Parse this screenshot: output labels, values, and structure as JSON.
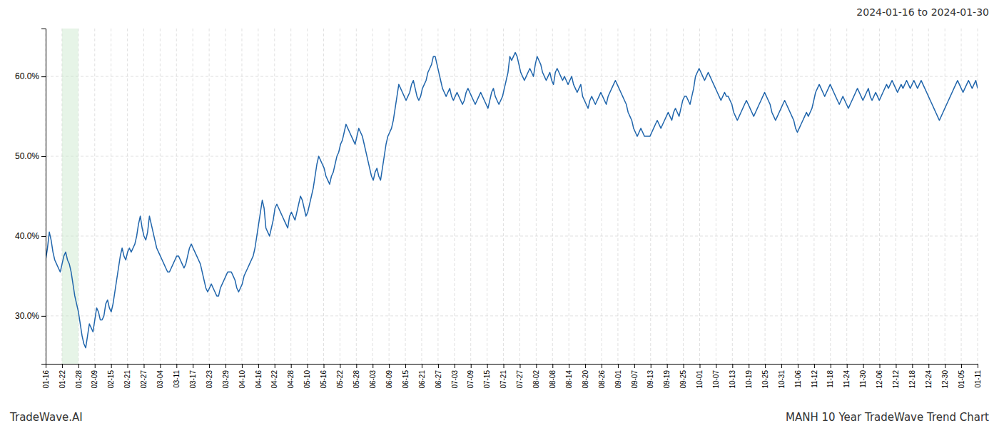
{
  "chart_data": {
    "type": "line",
    "title": "2024-01-16 to 2024-01-30",
    "annotations": [
      "TradeWave.AI",
      "MANH 10 Year TradeWave Trend Chart"
    ],
    "color": "#2166ac",
    "grid": true,
    "highlight": {
      "range": [
        1,
        2
      ],
      "color": "#c8e6c9"
    },
    "ylim": [
      24.0,
      66.0
    ],
    "yticks": [
      {
        "value": 30.0,
        "label": "30.0%"
      },
      {
        "value": 40.0,
        "label": "40.0%"
      },
      {
        "value": 50.0,
        "label": "50.0%"
      },
      {
        "value": 60.0,
        "label": "60.0%"
      }
    ],
    "xlim": [
      0,
      57
    ],
    "xticks": [
      {
        "value": 0,
        "label": "01-16"
      },
      {
        "value": 1,
        "label": "01-22"
      },
      {
        "value": 2,
        "label": "01-28"
      },
      {
        "value": 3,
        "label": "02-09"
      },
      {
        "value": 4,
        "label": "02-15"
      },
      {
        "value": 5,
        "label": "02-21"
      },
      {
        "value": 6,
        "label": "02-27"
      },
      {
        "value": 7,
        "label": "03-04"
      },
      {
        "value": 8,
        "label": "03-11"
      },
      {
        "value": 9,
        "label": "03-17"
      },
      {
        "value": 10,
        "label": "03-23"
      },
      {
        "value": 11,
        "label": "03-29"
      },
      {
        "value": 12,
        "label": "04-10"
      },
      {
        "value": 13,
        "label": "04-16"
      },
      {
        "value": 14,
        "label": "04-22"
      },
      {
        "value": 15,
        "label": "04-28"
      },
      {
        "value": 16,
        "label": "05-10"
      },
      {
        "value": 17,
        "label": "05-16"
      },
      {
        "value": 18,
        "label": "05-22"
      },
      {
        "value": 19,
        "label": "05-28"
      },
      {
        "value": 20,
        "label": "06-03"
      },
      {
        "value": 21,
        "label": "06-09"
      },
      {
        "value": 22,
        "label": "06-15"
      },
      {
        "value": 23,
        "label": "06-21"
      },
      {
        "value": 24,
        "label": "06-27"
      },
      {
        "value": 25,
        "label": "07-03"
      },
      {
        "value": 26,
        "label": "07-09"
      },
      {
        "value": 27,
        "label": "07-15"
      },
      {
        "value": 28,
        "label": "07-21"
      },
      {
        "value": 29,
        "label": "07-27"
      },
      {
        "value": 30,
        "label": "08-02"
      },
      {
        "value": 31,
        "label": "08-08"
      },
      {
        "value": 32,
        "label": "08-14"
      },
      {
        "value": 33,
        "label": "08-20"
      },
      {
        "value": 34,
        "label": "08-26"
      },
      {
        "value": 35,
        "label": "09-01"
      },
      {
        "value": 36,
        "label": "09-07"
      },
      {
        "value": 37,
        "label": "09-13"
      },
      {
        "value": 38,
        "label": "09-19"
      },
      {
        "value": 39,
        "label": "09-25"
      },
      {
        "value": 40,
        "label": "10-01"
      },
      {
        "value": 41,
        "label": "10-07"
      },
      {
        "value": 42,
        "label": "10-13"
      },
      {
        "value": 43,
        "label": "10-19"
      },
      {
        "value": 44,
        "label": "10-25"
      },
      {
        "value": 45,
        "label": "10-31"
      },
      {
        "value": 46,
        "label": "11-06"
      },
      {
        "value": 47,
        "label": "11-12"
      },
      {
        "value": 48,
        "label": "11-18"
      },
      {
        "value": 49,
        "label": "11-24"
      },
      {
        "value": 50,
        "label": "11-30"
      },
      {
        "value": 51,
        "label": "12-06"
      },
      {
        "value": 52,
        "label": "12-12"
      },
      {
        "value": 53,
        "label": "12-18"
      },
      {
        "value": 54,
        "label": "12-24"
      },
      {
        "value": 55,
        "label": "12-30"
      },
      {
        "value": 56,
        "label": "01-05"
      },
      {
        "value": 57,
        "label": "01-11"
      }
    ],
    "values": [
      37.0,
      38.5,
      40.5,
      39.5,
      38.0,
      37.0,
      36.5,
      36.0,
      35.5,
      36.5,
      37.5,
      38.0,
      37.0,
      36.5,
      35.5,
      34.0,
      32.5,
      31.5,
      30.5,
      29.0,
      27.5,
      26.5,
      26.0,
      27.5,
      29.0,
      28.5,
      28.0,
      29.5,
      31.0,
      30.5,
      29.5,
      29.5,
      30.0,
      31.5,
      32.0,
      31.0,
      30.5,
      31.5,
      33.0,
      34.5,
      36.0,
      37.5,
      38.5,
      37.5,
      37.0,
      38.0,
      38.5,
      38.0,
      38.5,
      39.0,
      40.0,
      41.5,
      42.5,
      41.0,
      40.0,
      39.5,
      40.5,
      42.5,
      41.5,
      40.5,
      39.5,
      38.5,
      38.0,
      37.5,
      37.0,
      36.5,
      36.0,
      35.5,
      35.5,
      36.0,
      36.5,
      37.0,
      37.5,
      37.5,
      37.0,
      36.5,
      36.0,
      36.5,
      37.5,
      38.5,
      39.0,
      38.5,
      38.0,
      37.5,
      37.0,
      36.5,
      35.5,
      34.5,
      33.5,
      33.0,
      33.5,
      34.0,
      33.5,
      33.0,
      32.5,
      32.5,
      33.5,
      34.0,
      34.5,
      35.0,
      35.5,
      35.5,
      35.5,
      35.0,
      34.5,
      33.5,
      33.0,
      33.5,
      34.0,
      35.0,
      35.5,
      36.0,
      36.5,
      37.0,
      37.5,
      38.5,
      40.0,
      41.5,
      43.0,
      44.5,
      43.5,
      41.0,
      40.5,
      40.0,
      41.0,
      42.0,
      43.5,
      44.0,
      43.5,
      43.0,
      42.5,
      42.0,
      41.5,
      41.0,
      42.5,
      43.0,
      42.5,
      42.0,
      43.0,
      44.0,
      45.0,
      44.5,
      43.5,
      42.5,
      43.0,
      44.0,
      45.0,
      46.0,
      47.5,
      49.0,
      50.0,
      49.5,
      49.0,
      48.5,
      47.5,
      47.0,
      46.5,
      47.5,
      48.0,
      49.0,
      50.0,
      50.5,
      51.5,
      52.0,
      53.0,
      54.0,
      53.5,
      53.0,
      52.5,
      52.0,
      51.5,
      52.5,
      53.5,
      53.0,
      52.5,
      51.5,
      50.5,
      49.5,
      48.5,
      47.5,
      47.0,
      48.0,
      48.5,
      47.5,
      47.0,
      48.5,
      50.0,
      51.5,
      52.5,
      53.0,
      53.5,
      54.5,
      56.0,
      57.5,
      59.0,
      58.5,
      58.0,
      57.5,
      57.0,
      57.5,
      58.0,
      59.0,
      59.5,
      58.5,
      57.5,
      57.0,
      57.5,
      58.5,
      59.0,
      59.5,
      60.5,
      61.0,
      61.5,
      62.5,
      62.5,
      61.5,
      60.5,
      59.5,
      58.5,
      58.0,
      57.5,
      58.0,
      58.5,
      57.5,
      57.0,
      57.5,
      58.0,
      57.5,
      57.0,
      56.5,
      57.0,
      58.0,
      58.5,
      58.0,
      57.5,
      57.0,
      56.5,
      57.0,
      57.5,
      58.0,
      57.5,
      57.0,
      56.5,
      56.0,
      57.0,
      58.0,
      58.5,
      57.5,
      57.0,
      56.5,
      57.0,
      57.5,
      58.5,
      59.5,
      60.5,
      62.5,
      62.0,
      62.5,
      63.0,
      62.5,
      61.5,
      60.5,
      60.0,
      59.5,
      60.0,
      60.5,
      61.0,
      60.5,
      60.0,
      61.5,
      62.5,
      62.0,
      61.5,
      60.5,
      60.0,
      59.5,
      60.0,
      60.5,
      59.5,
      59.0,
      60.5,
      61.0,
      60.5,
      60.0,
      59.5,
      60.0,
      59.5,
      59.0,
      59.5,
      60.0,
      59.0,
      58.5,
      58.0,
      58.5,
      59.0,
      57.5,
      57.0,
      56.5,
      56.0,
      57.0,
      57.5,
      57.0,
      56.5,
      57.0,
      57.5,
      58.0,
      57.5,
      57.0,
      56.5,
      57.5,
      58.0,
      58.5,
      59.0,
      59.5,
      59.0,
      58.5,
      58.0,
      57.5,
      57.0,
      56.5,
      55.5,
      55.0,
      54.5,
      53.5,
      53.0,
      52.5,
      53.0,
      53.5,
      53.0,
      52.5,
      52.5,
      52.5,
      52.5,
      53.0,
      53.5,
      54.0,
      54.5,
      54.0,
      53.5,
      54.0,
      54.5,
      55.0,
      55.5,
      55.0,
      54.5,
      55.5,
      56.0,
      55.5,
      55.0,
      56.0,
      57.0,
      57.5,
      57.5,
      57.0,
      56.5,
      57.5,
      58.5,
      60.0,
      60.5,
      61.0,
      60.5,
      60.0,
      59.5,
      60.0,
      60.5,
      60.0,
      59.5,
      59.0,
      58.5,
      58.0,
      57.5,
      57.0,
      57.5,
      58.0,
      57.5,
      57.5,
      57.0,
      56.5,
      55.5,
      55.0,
      54.5,
      55.0,
      55.5,
      56.0,
      56.5,
      57.0,
      56.5,
      56.0,
      55.5,
      55.0,
      55.5,
      56.0,
      56.5,
      57.0,
      57.5,
      58.0,
      57.5,
      57.0,
      56.5,
      55.5,
      55.0,
      54.5,
      55.0,
      55.5,
      56.0,
      56.5,
      57.0,
      56.5,
      56.0,
      55.5,
      55.0,
      54.5,
      53.5,
      53.0,
      53.5,
      54.0,
      54.5,
      55.0,
      55.5,
      55.0,
      55.5,
      56.0,
      57.0,
      58.0,
      58.5,
      59.0,
      58.5,
      58.0,
      57.5,
      58.0,
      58.5,
      59.0,
      58.5,
      58.0,
      57.5,
      57.0,
      56.5,
      57.0,
      57.5,
      57.0,
      56.5,
      56.0,
      56.5,
      57.0,
      57.5,
      58.0,
      58.5,
      58.0,
      57.5,
      57.0,
      57.5,
      58.0,
      58.5,
      57.5,
      57.0,
      57.5,
      58.0,
      57.5,
      57.0,
      57.5,
      58.0,
      58.5,
      59.0,
      58.5,
      59.0,
      59.5,
      59.0,
      58.5,
      58.0,
      58.5,
      59.0,
      58.5,
      59.0,
      59.5,
      59.0,
      58.5,
      59.0,
      59.5,
      59.0,
      58.5,
      59.0,
      59.5,
      59.0,
      58.5,
      58.0,
      57.5,
      57.0,
      56.5,
      56.0,
      55.5,
      55.0,
      54.5,
      55.0,
      55.5,
      56.0,
      56.5,
      57.0,
      57.5,
      58.0,
      58.5,
      59.0,
      59.5,
      59.0,
      58.5,
      58.0,
      58.5,
      59.0,
      59.5,
      59.0,
      58.5,
      59.0,
      59.5,
      58.5
    ]
  }
}
